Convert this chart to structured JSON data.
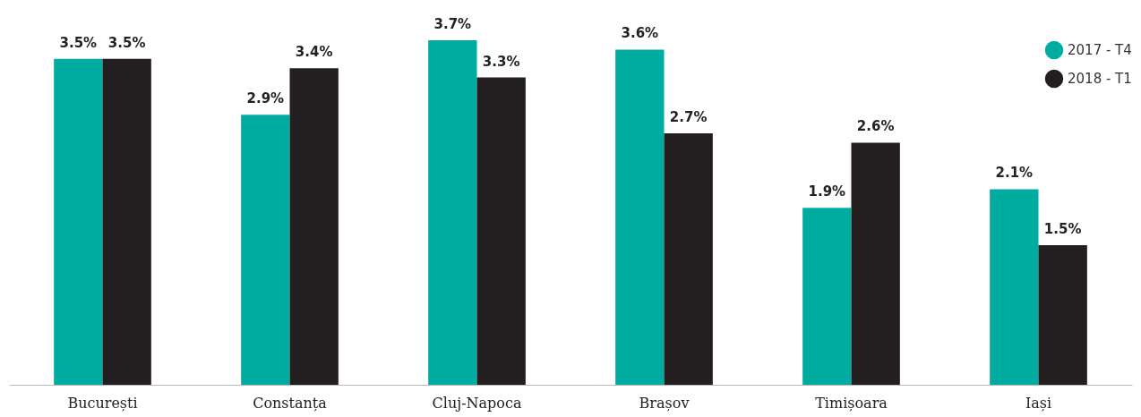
{
  "chart_data": {
    "type": "bar",
    "categories": [
      "București",
      "Constanța",
      "Cluj-Napoca",
      "Brașov",
      "Timișoara",
      "Iași"
    ],
    "series": [
      {
        "name": "2017 - T4",
        "color": "#00aca0",
        "values": [
          3.5,
          2.9,
          3.7,
          3.6,
          1.9,
          2.1
        ],
        "value_labels": [
          "3.5%",
          "2.9%",
          "3.7%",
          "3.6%",
          "1.9%",
          "2.1%"
        ]
      },
      {
        "name": "2018 - T1",
        "color": "#231f20",
        "values": [
          3.5,
          3.4,
          3.3,
          2.7,
          2.6,
          1.5
        ],
        "value_labels": [
          "3.5%",
          "3.4%",
          "3.3%",
          "2.7%",
          "2.6%",
          "1.5%"
        ]
      }
    ],
    "legend": "top right"
  }
}
